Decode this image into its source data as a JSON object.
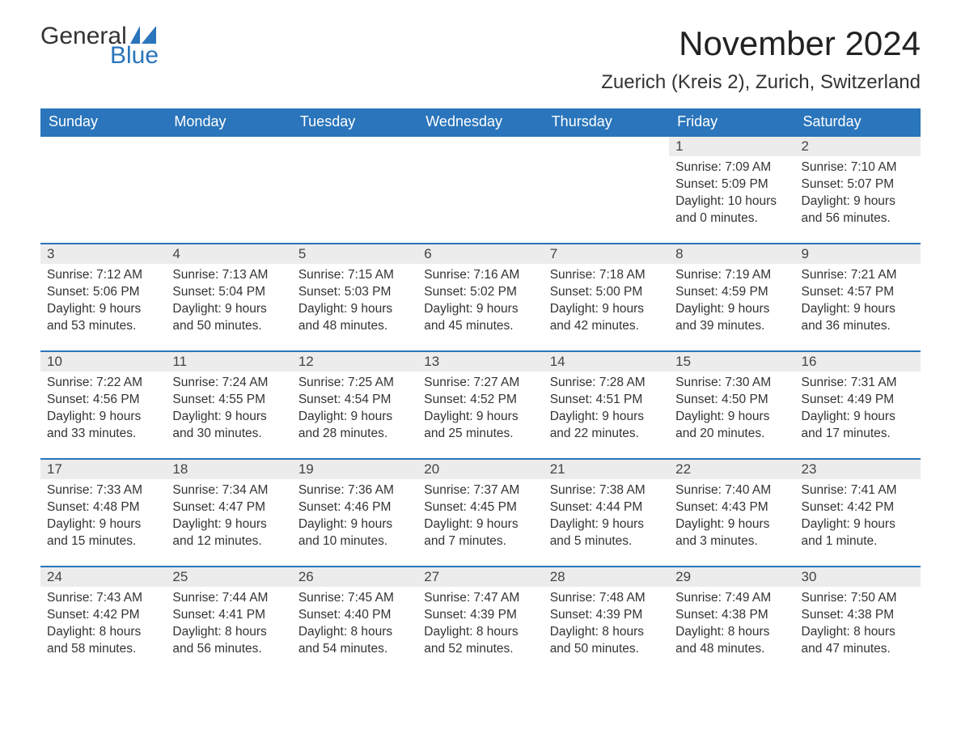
{
  "brand": {
    "line1": "General",
    "line2": "Blue",
    "flag_color": "#2a75bb",
    "text_color": "#333333"
  },
  "title": "November 2024",
  "location": "Zuerich (Kreis 2), Zurich, Switzerland",
  "style": {
    "header_bg": "#2a75bb",
    "header_fg": "#ffffff",
    "daynum_bg": "#ececec",
    "row_border": "#2a75bb",
    "body_bg": "#ffffff",
    "font_family": "Arial",
    "title_fontsize": 42,
    "location_fontsize": 24,
    "header_fontsize": 18,
    "cell_fontsize": 15.5
  },
  "columns": [
    "Sunday",
    "Monday",
    "Tuesday",
    "Wednesday",
    "Thursday",
    "Friday",
    "Saturday"
  ],
  "weeks": [
    [
      null,
      null,
      null,
      null,
      null,
      {
        "n": "1",
        "sr": "Sunrise: 7:09 AM",
        "ss": "Sunset: 5:09 PM",
        "dl": "Daylight: 10 hours and 0 minutes."
      },
      {
        "n": "2",
        "sr": "Sunrise: 7:10 AM",
        "ss": "Sunset: 5:07 PM",
        "dl": "Daylight: 9 hours and 56 minutes."
      }
    ],
    [
      {
        "n": "3",
        "sr": "Sunrise: 7:12 AM",
        "ss": "Sunset: 5:06 PM",
        "dl": "Daylight: 9 hours and 53 minutes."
      },
      {
        "n": "4",
        "sr": "Sunrise: 7:13 AM",
        "ss": "Sunset: 5:04 PM",
        "dl": "Daylight: 9 hours and 50 minutes."
      },
      {
        "n": "5",
        "sr": "Sunrise: 7:15 AM",
        "ss": "Sunset: 5:03 PM",
        "dl": "Daylight: 9 hours and 48 minutes."
      },
      {
        "n": "6",
        "sr": "Sunrise: 7:16 AM",
        "ss": "Sunset: 5:02 PM",
        "dl": "Daylight: 9 hours and 45 minutes."
      },
      {
        "n": "7",
        "sr": "Sunrise: 7:18 AM",
        "ss": "Sunset: 5:00 PM",
        "dl": "Daylight: 9 hours and 42 minutes."
      },
      {
        "n": "8",
        "sr": "Sunrise: 7:19 AM",
        "ss": "Sunset: 4:59 PM",
        "dl": "Daylight: 9 hours and 39 minutes."
      },
      {
        "n": "9",
        "sr": "Sunrise: 7:21 AM",
        "ss": "Sunset: 4:57 PM",
        "dl": "Daylight: 9 hours and 36 minutes."
      }
    ],
    [
      {
        "n": "10",
        "sr": "Sunrise: 7:22 AM",
        "ss": "Sunset: 4:56 PM",
        "dl": "Daylight: 9 hours and 33 minutes."
      },
      {
        "n": "11",
        "sr": "Sunrise: 7:24 AM",
        "ss": "Sunset: 4:55 PM",
        "dl": "Daylight: 9 hours and 30 minutes."
      },
      {
        "n": "12",
        "sr": "Sunrise: 7:25 AM",
        "ss": "Sunset: 4:54 PM",
        "dl": "Daylight: 9 hours and 28 minutes."
      },
      {
        "n": "13",
        "sr": "Sunrise: 7:27 AM",
        "ss": "Sunset: 4:52 PM",
        "dl": "Daylight: 9 hours and 25 minutes."
      },
      {
        "n": "14",
        "sr": "Sunrise: 7:28 AM",
        "ss": "Sunset: 4:51 PM",
        "dl": "Daylight: 9 hours and 22 minutes."
      },
      {
        "n": "15",
        "sr": "Sunrise: 7:30 AM",
        "ss": "Sunset: 4:50 PM",
        "dl": "Daylight: 9 hours and 20 minutes."
      },
      {
        "n": "16",
        "sr": "Sunrise: 7:31 AM",
        "ss": "Sunset: 4:49 PM",
        "dl": "Daylight: 9 hours and 17 minutes."
      }
    ],
    [
      {
        "n": "17",
        "sr": "Sunrise: 7:33 AM",
        "ss": "Sunset: 4:48 PM",
        "dl": "Daylight: 9 hours and 15 minutes."
      },
      {
        "n": "18",
        "sr": "Sunrise: 7:34 AM",
        "ss": "Sunset: 4:47 PM",
        "dl": "Daylight: 9 hours and 12 minutes."
      },
      {
        "n": "19",
        "sr": "Sunrise: 7:36 AM",
        "ss": "Sunset: 4:46 PM",
        "dl": "Daylight: 9 hours and 10 minutes."
      },
      {
        "n": "20",
        "sr": "Sunrise: 7:37 AM",
        "ss": "Sunset: 4:45 PM",
        "dl": "Daylight: 9 hours and 7 minutes."
      },
      {
        "n": "21",
        "sr": "Sunrise: 7:38 AM",
        "ss": "Sunset: 4:44 PM",
        "dl": "Daylight: 9 hours and 5 minutes."
      },
      {
        "n": "22",
        "sr": "Sunrise: 7:40 AM",
        "ss": "Sunset: 4:43 PM",
        "dl": "Daylight: 9 hours and 3 minutes."
      },
      {
        "n": "23",
        "sr": "Sunrise: 7:41 AM",
        "ss": "Sunset: 4:42 PM",
        "dl": "Daylight: 9 hours and 1 minute."
      }
    ],
    [
      {
        "n": "24",
        "sr": "Sunrise: 7:43 AM",
        "ss": "Sunset: 4:42 PM",
        "dl": "Daylight: 8 hours and 58 minutes."
      },
      {
        "n": "25",
        "sr": "Sunrise: 7:44 AM",
        "ss": "Sunset: 4:41 PM",
        "dl": "Daylight: 8 hours and 56 minutes."
      },
      {
        "n": "26",
        "sr": "Sunrise: 7:45 AM",
        "ss": "Sunset: 4:40 PM",
        "dl": "Daylight: 8 hours and 54 minutes."
      },
      {
        "n": "27",
        "sr": "Sunrise: 7:47 AM",
        "ss": "Sunset: 4:39 PM",
        "dl": "Daylight: 8 hours and 52 minutes."
      },
      {
        "n": "28",
        "sr": "Sunrise: 7:48 AM",
        "ss": "Sunset: 4:39 PM",
        "dl": "Daylight: 8 hours and 50 minutes."
      },
      {
        "n": "29",
        "sr": "Sunrise: 7:49 AM",
        "ss": "Sunset: 4:38 PM",
        "dl": "Daylight: 8 hours and 48 minutes."
      },
      {
        "n": "30",
        "sr": "Sunrise: 7:50 AM",
        "ss": "Sunset: 4:38 PM",
        "dl": "Daylight: 8 hours and 47 minutes."
      }
    ]
  ]
}
